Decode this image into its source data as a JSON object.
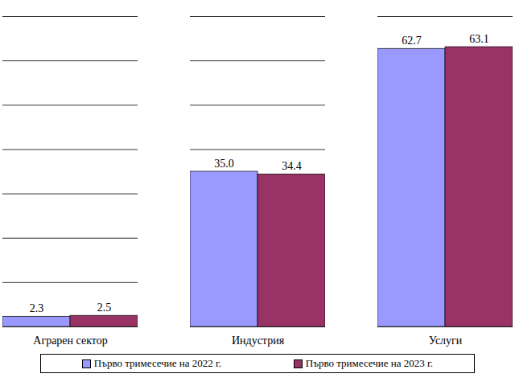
{
  "chart_data": {
    "type": "bar",
    "categories": [
      "Аграрен сектор",
      "Индустрия",
      "Услуги"
    ],
    "series": [
      {
        "name": "Първо тримесечие на 2022 г.",
        "color": "#9999ff",
        "values": [
          2.3,
          35.0,
          62.7
        ],
        "value_labels": [
          "2.3",
          "35.0",
          "62.7"
        ]
      },
      {
        "name": "Първо тримесечие на 2023 г.",
        "color": "#993366",
        "values": [
          2.5,
          34.4,
          63.1
        ],
        "value_labels": [
          "2.5",
          "34.4",
          "63.1"
        ]
      }
    ],
    "ylim": [
      0,
      70
    ],
    "yticks": [
      0,
      10,
      20,
      30,
      40,
      50,
      60,
      70
    ],
    "grid": true,
    "data_labels": true,
    "tick_labels": "x",
    "legend": "bottom"
  }
}
